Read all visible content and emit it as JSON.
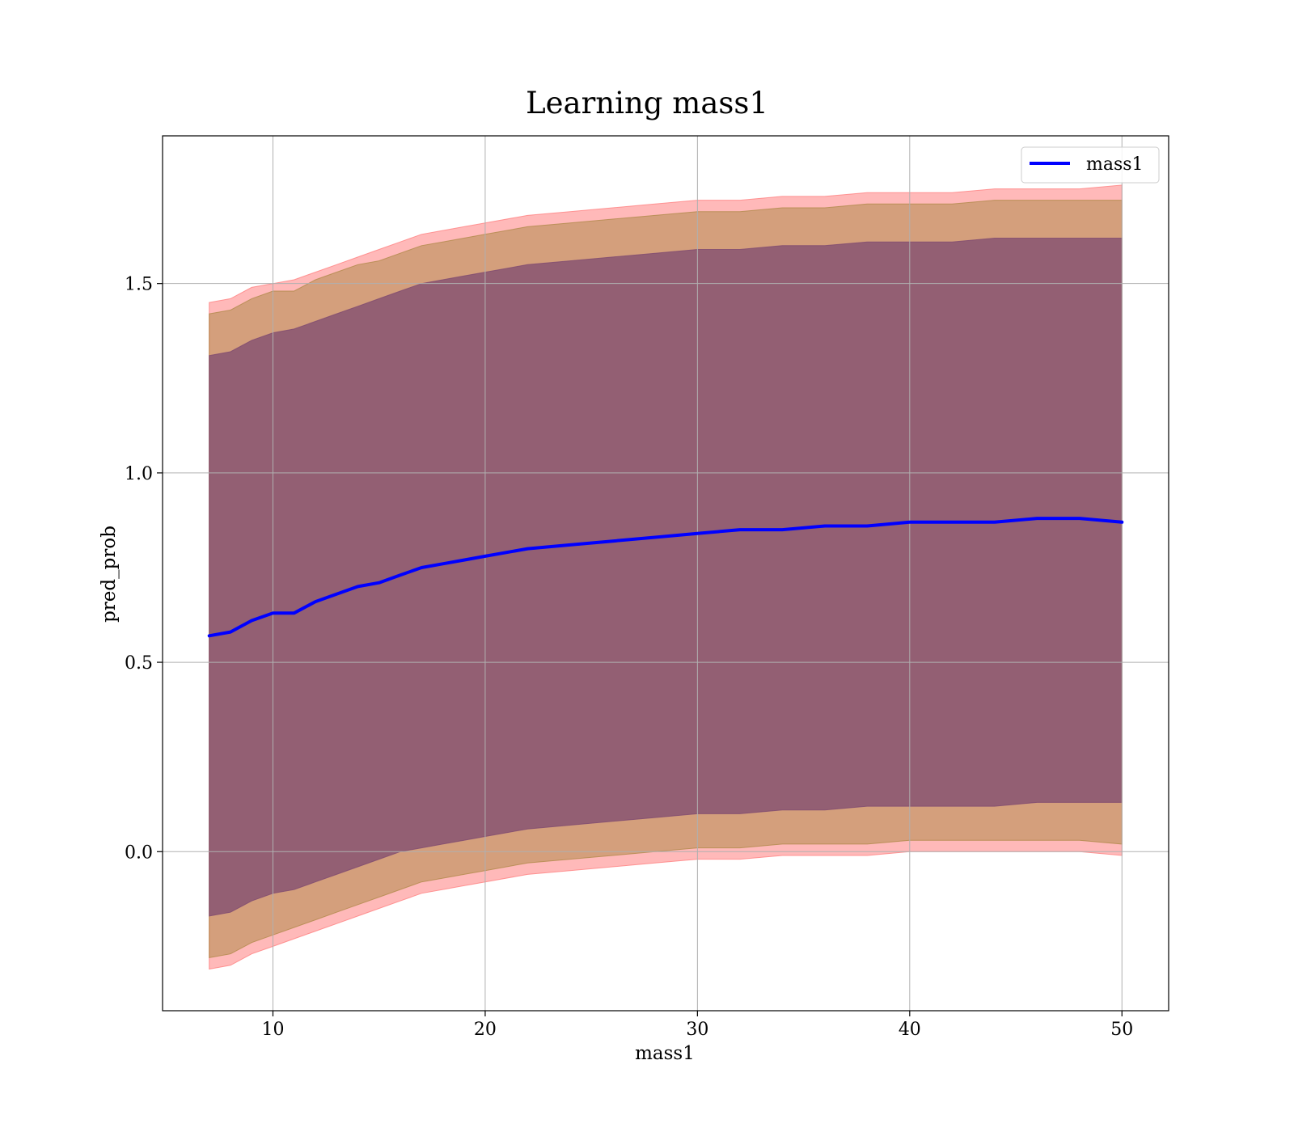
{
  "chart_data": {
    "type": "line",
    "title": "Learning mass1",
    "xlabel": "mass1",
    "ylabel": "pred_prob",
    "xlim": [
      4.8,
      52.2
    ],
    "ylim": [
      -0.42,
      1.89
    ],
    "xticks": [
      10,
      20,
      30,
      40,
      50
    ],
    "xtick_labels": [
      "10",
      "20",
      "30",
      "40",
      "50"
    ],
    "yticks": [
      0.0,
      0.5,
      1.0,
      1.5
    ],
    "ytick_labels": [
      "0.0",
      "0.5",
      "1.0",
      "1.5"
    ],
    "grid": true,
    "legend": {
      "placement": "top-right",
      "entries": [
        "mass1"
      ]
    },
    "colors": {
      "line": "#0000ff",
      "band_outer": "#ff7f7f",
      "band_middle": "#b08a4a",
      "band_inner": "#7e4a70",
      "grid": "#b0b0b0"
    },
    "x": [
      7,
      8,
      9,
      10,
      11,
      12,
      13,
      14,
      15,
      16,
      17,
      18,
      19,
      20,
      22,
      24,
      26,
      28,
      30,
      32,
      34,
      36,
      38,
      40,
      42,
      44,
      46,
      48,
      50
    ],
    "series": [
      {
        "name": "mass1",
        "role": "mean",
        "values": [
          0.57,
          0.58,
          0.61,
          0.63,
          0.63,
          0.66,
          0.68,
          0.7,
          0.71,
          0.73,
          0.75,
          0.76,
          0.77,
          0.78,
          0.8,
          0.81,
          0.82,
          0.83,
          0.84,
          0.85,
          0.85,
          0.86,
          0.86,
          0.87,
          0.87,
          0.87,
          0.88,
          0.88,
          0.87
        ]
      }
    ],
    "bands": [
      {
        "role": "mean ± 3 std",
        "upper": [
          1.45,
          1.46,
          1.49,
          1.5,
          1.51,
          1.53,
          1.55,
          1.57,
          1.59,
          1.61,
          1.63,
          1.64,
          1.65,
          1.66,
          1.68,
          1.69,
          1.7,
          1.71,
          1.72,
          1.72,
          1.73,
          1.73,
          1.74,
          1.74,
          1.74,
          1.75,
          1.75,
          1.75,
          1.76
        ],
        "lower": [
          -0.31,
          -0.3,
          -0.27,
          -0.25,
          -0.23,
          -0.21,
          -0.19,
          -0.17,
          -0.15,
          -0.13,
          -0.11,
          -0.1,
          -0.09,
          -0.08,
          -0.06,
          -0.05,
          -0.04,
          -0.03,
          -0.02,
          -0.02,
          -0.01,
          -0.01,
          -0.01,
          0.0,
          0.0,
          0.0,
          0.0,
          0.0,
          -0.01
        ]
      },
      {
        "role": "mean ± 2 std",
        "upper": [
          1.42,
          1.43,
          1.46,
          1.48,
          1.48,
          1.51,
          1.53,
          1.55,
          1.56,
          1.58,
          1.6,
          1.61,
          1.62,
          1.63,
          1.65,
          1.66,
          1.67,
          1.68,
          1.69,
          1.69,
          1.7,
          1.7,
          1.71,
          1.71,
          1.71,
          1.72,
          1.72,
          1.72,
          1.72
        ],
        "lower": [
          -0.28,
          -0.27,
          -0.24,
          -0.22,
          -0.2,
          -0.18,
          -0.16,
          -0.14,
          -0.12,
          -0.1,
          -0.08,
          -0.07,
          -0.06,
          -0.05,
          -0.03,
          -0.02,
          -0.01,
          0.0,
          0.01,
          0.01,
          0.02,
          0.02,
          0.02,
          0.03,
          0.03,
          0.03,
          0.03,
          0.03,
          0.02
        ]
      },
      {
        "role": "mean ± 1 std",
        "upper": [
          1.31,
          1.32,
          1.35,
          1.37,
          1.38,
          1.4,
          1.42,
          1.44,
          1.46,
          1.48,
          1.5,
          1.51,
          1.52,
          1.53,
          1.55,
          1.56,
          1.57,
          1.58,
          1.59,
          1.59,
          1.6,
          1.6,
          1.61,
          1.61,
          1.61,
          1.62,
          1.62,
          1.62,
          1.62
        ],
        "lower": [
          -0.17,
          -0.16,
          -0.13,
          -0.11,
          -0.1,
          -0.08,
          -0.06,
          -0.04,
          -0.02,
          0.0,
          0.01,
          0.02,
          0.03,
          0.04,
          0.06,
          0.07,
          0.08,
          0.09,
          0.1,
          0.1,
          0.11,
          0.11,
          0.12,
          0.12,
          0.12,
          0.12,
          0.13,
          0.13,
          0.13
        ]
      }
    ]
  }
}
